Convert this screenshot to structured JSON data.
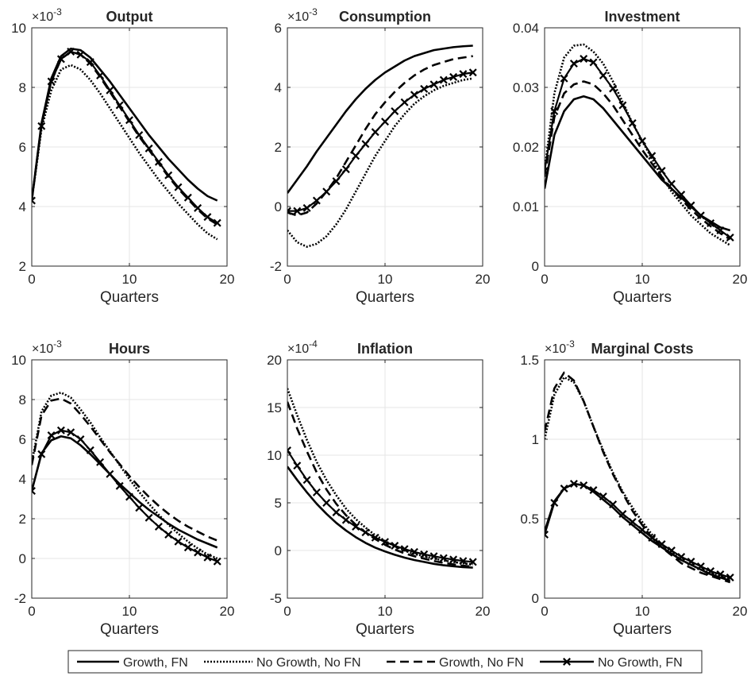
{
  "legend": {
    "placement": "bottom-center",
    "entries": [
      "Growth, FN",
      "No Growth, No FN",
      "Growth, No FN",
      "No Growth, FN"
    ]
  },
  "colors": {
    "lines": "#000000",
    "axes": "#262626",
    "grid": "#e6e6e6",
    "background": "#ffffff"
  },
  "chart_data": [
    {
      "type": "line",
      "title": "Output",
      "xlabel": "Quarters",
      "ylabel": "",
      "exponent": "-3",
      "xlim": [
        0,
        20
      ],
      "ylim": [
        2,
        10
      ],
      "xticks": [
        0,
        10,
        20
      ],
      "yticks": [
        2,
        4,
        6,
        8,
        10
      ],
      "grid": true,
      "x": [
        0,
        1,
        2,
        3,
        4,
        5,
        6,
        7,
        8,
        9,
        10,
        11,
        12,
        13,
        14,
        15,
        16,
        17,
        18,
        19
      ],
      "series": [
        {
          "name": "Growth, FN",
          "style": "solid",
          "values": [
            4.2,
            6.8,
            8.3,
            9.05,
            9.3,
            9.25,
            9.0,
            8.6,
            8.2,
            7.75,
            7.3,
            6.85,
            6.4,
            6.0,
            5.6,
            5.25,
            4.9,
            4.6,
            4.35,
            4.2
          ]
        },
        {
          "name": "No Growth, No FN",
          "style": "dotted",
          "values": [
            4.2,
            6.6,
            7.9,
            8.6,
            8.75,
            8.6,
            8.25,
            7.8,
            7.3,
            6.8,
            6.3,
            5.8,
            5.35,
            4.9,
            4.5,
            4.1,
            3.75,
            3.4,
            3.1,
            2.9
          ]
        },
        {
          "name": "Growth, No FN",
          "style": "dashed",
          "values": [
            4.2,
            6.75,
            8.2,
            8.95,
            9.2,
            9.1,
            8.8,
            8.35,
            7.85,
            7.35,
            6.85,
            6.35,
            5.9,
            5.45,
            5.0,
            4.6,
            4.25,
            3.9,
            3.6,
            3.4
          ]
        },
        {
          "name": "No Growth, FN",
          "style": "x-marker",
          "values": [
            4.2,
            6.7,
            8.2,
            8.95,
            9.2,
            9.1,
            8.85,
            8.4,
            7.9,
            7.4,
            6.9,
            6.4,
            5.95,
            5.5,
            5.05,
            4.65,
            4.3,
            3.95,
            3.65,
            3.45
          ]
        }
      ]
    },
    {
      "type": "line",
      "title": "Consumption",
      "xlabel": "Quarters",
      "ylabel": "",
      "exponent": "-3",
      "xlim": [
        0,
        20
      ],
      "ylim": [
        -2,
        6
      ],
      "xticks": [
        0,
        10,
        20
      ],
      "yticks": [
        -2,
        0,
        2,
        4,
        6
      ],
      "grid": true,
      "x": [
        0,
        1,
        2,
        3,
        4,
        5,
        6,
        7,
        8,
        9,
        10,
        11,
        12,
        13,
        14,
        15,
        16,
        17,
        18,
        19
      ],
      "series": [
        {
          "name": "Growth, FN",
          "style": "solid",
          "values": [
            0.45,
            0.9,
            1.35,
            1.85,
            2.3,
            2.75,
            3.2,
            3.6,
            3.95,
            4.25,
            4.5,
            4.7,
            4.9,
            5.05,
            5.15,
            5.25,
            5.3,
            5.35,
            5.38,
            5.4
          ]
        },
        {
          "name": "No Growth, No FN",
          "style": "dotted",
          "values": [
            -0.8,
            -1.2,
            -1.35,
            -1.25,
            -1.0,
            -0.6,
            -0.1,
            0.5,
            1.1,
            1.7,
            2.2,
            2.7,
            3.1,
            3.45,
            3.7,
            3.9,
            4.05,
            4.15,
            4.25,
            4.3
          ]
        },
        {
          "name": "Growth, No FN",
          "style": "dashed",
          "values": [
            -0.2,
            -0.3,
            -0.2,
            0.1,
            0.5,
            0.95,
            1.5,
            2.05,
            2.6,
            3.1,
            3.5,
            3.85,
            4.15,
            4.4,
            4.6,
            4.75,
            4.85,
            4.95,
            5.0,
            5.05
          ]
        },
        {
          "name": "No Growth, FN",
          "style": "x-marker",
          "values": [
            -0.15,
            -0.15,
            -0.05,
            0.2,
            0.5,
            0.85,
            1.25,
            1.7,
            2.1,
            2.5,
            2.85,
            3.2,
            3.5,
            3.75,
            3.95,
            4.1,
            4.25,
            4.35,
            4.45,
            4.5
          ]
        }
      ]
    },
    {
      "type": "line",
      "title": "Investment",
      "xlabel": "Quarters",
      "ylabel": "",
      "exponent": "",
      "xlim": [
        0,
        20
      ],
      "ylim": [
        0,
        0.04
      ],
      "xticks": [
        0,
        10,
        20
      ],
      "yticks": [
        0,
        0.01,
        0.02,
        0.03,
        0.04
      ],
      "yticklabels": [
        "0",
        "0.01",
        "0.02",
        "0.03",
        "0.04"
      ],
      "grid": true,
      "x": [
        0,
        1,
        2,
        3,
        4,
        5,
        6,
        7,
        8,
        9,
        10,
        11,
        12,
        13,
        14,
        15,
        16,
        17,
        18,
        19
      ],
      "series": [
        {
          "name": "Growth, FN",
          "style": "solid",
          "values": [
            0.013,
            0.022,
            0.026,
            0.028,
            0.0285,
            0.028,
            0.0265,
            0.0245,
            0.0225,
            0.0205,
            0.0185,
            0.0165,
            0.0145,
            0.013,
            0.0115,
            0.01,
            0.0085,
            0.0075,
            0.0065,
            0.006
          ]
        },
        {
          "name": "No Growth, No FN",
          "style": "dotted",
          "values": [
            0.016,
            0.029,
            0.035,
            0.037,
            0.0372,
            0.036,
            0.034,
            0.031,
            0.0275,
            0.024,
            0.021,
            0.018,
            0.015,
            0.0125,
            0.0105,
            0.0085,
            0.007,
            0.0055,
            0.0045,
            0.0035
          ]
        },
        {
          "name": "Growth, No FN",
          "style": "dashed",
          "values": [
            0.015,
            0.025,
            0.029,
            0.0305,
            0.031,
            0.0305,
            0.029,
            0.027,
            0.0245,
            0.022,
            0.0195,
            0.0172,
            0.015,
            0.013,
            0.0112,
            0.0095,
            0.008,
            0.0067,
            0.0055,
            0.0045
          ]
        },
        {
          "name": "No Growth, FN",
          "style": "x-marker",
          "values": [
            0.016,
            0.026,
            0.0315,
            0.034,
            0.0348,
            0.0342,
            0.032,
            0.0298,
            0.027,
            0.024,
            0.021,
            0.0185,
            0.016,
            0.0138,
            0.012,
            0.0102,
            0.0085,
            0.0072,
            0.006,
            0.0048
          ]
        }
      ]
    },
    {
      "type": "line",
      "title": "Hours",
      "xlabel": "Quarters",
      "ylabel": "",
      "exponent": "-3",
      "xlim": [
        0,
        20
      ],
      "ylim": [
        -2,
        10
      ],
      "xticks": [
        0,
        10,
        20
      ],
      "yticks": [
        -2,
        0,
        2,
        4,
        6,
        8,
        10
      ],
      "grid": true,
      "x": [
        0,
        1,
        2,
        3,
        4,
        5,
        6,
        7,
        8,
        9,
        10,
        11,
        12,
        13,
        14,
        15,
        16,
        17,
        18,
        19
      ],
      "series": [
        {
          "name": "Growth, FN",
          "style": "solid",
          "values": [
            3.4,
            5.3,
            5.95,
            6.15,
            6.05,
            5.7,
            5.25,
            4.75,
            4.25,
            3.75,
            3.3,
            2.85,
            2.45,
            2.1,
            1.75,
            1.45,
            1.2,
            0.95,
            0.75,
            0.55
          ]
        },
        {
          "name": "No Growth, No FN",
          "style": "dotted",
          "values": [
            4.8,
            7.4,
            8.2,
            8.35,
            8.1,
            7.5,
            6.85,
            6.1,
            5.4,
            4.7,
            4.0,
            3.35,
            2.75,
            2.2,
            1.7,
            1.25,
            0.85,
            0.5,
            0.2,
            0.0
          ]
        },
        {
          "name": "Growth, No FN",
          "style": "dashed",
          "values": [
            4.7,
            7.2,
            7.95,
            8.05,
            7.8,
            7.25,
            6.65,
            6.0,
            5.35,
            4.75,
            4.15,
            3.6,
            3.1,
            2.65,
            2.25,
            1.9,
            1.6,
            1.35,
            1.1,
            0.9
          ]
        },
        {
          "name": "No Growth, FN",
          "style": "x-marker",
          "values": [
            3.4,
            5.25,
            6.2,
            6.45,
            6.35,
            6.0,
            5.45,
            4.85,
            4.25,
            3.65,
            3.1,
            2.55,
            2.05,
            1.6,
            1.2,
            0.85,
            0.55,
            0.3,
            0.05,
            -0.15
          ]
        }
      ]
    },
    {
      "type": "line",
      "title": "Inflation",
      "xlabel": "Quarters",
      "ylabel": "",
      "exponent": "-4",
      "xlim": [
        0,
        20
      ],
      "ylim": [
        -5,
        20
      ],
      "xticks": [
        0,
        10,
        20
      ],
      "yticks": [
        -5,
        0,
        5,
        10,
        15,
        20
      ],
      "grid": true,
      "x": [
        0,
        1,
        2,
        3,
        4,
        5,
        6,
        7,
        8,
        9,
        10,
        11,
        12,
        13,
        14,
        15,
        16,
        17,
        18,
        19
      ],
      "series": [
        {
          "name": "Growth, FN",
          "style": "solid",
          "values": [
            8.8,
            7.4,
            6.1,
            4.9,
            3.85,
            2.9,
            2.1,
            1.4,
            0.8,
            0.3,
            -0.1,
            -0.45,
            -0.75,
            -1.0,
            -1.2,
            -1.4,
            -1.55,
            -1.65,
            -1.75,
            -1.8
          ]
        },
        {
          "name": "No Growth, No FN",
          "style": "dotted",
          "values": [
            17.0,
            14.2,
            11.6,
            9.3,
            7.4,
            5.8,
            4.4,
            3.3,
            2.4,
            1.6,
            1.0,
            0.45,
            0.0,
            -0.35,
            -0.6,
            -0.85,
            -1.05,
            -1.2,
            -1.35,
            -1.45
          ]
        },
        {
          "name": "Growth, No FN",
          "style": "dashed",
          "values": [
            15.6,
            12.8,
            10.4,
            8.2,
            6.4,
            4.9,
            3.7,
            2.7,
            1.9,
            1.2,
            0.6,
            0.1,
            -0.3,
            -0.6,
            -0.85,
            -1.1,
            -1.3,
            -1.45,
            -1.6,
            -1.7
          ]
        },
        {
          "name": "No Growth, FN",
          "style": "x-marker",
          "values": [
            10.5,
            8.9,
            7.4,
            6.1,
            5.0,
            4.0,
            3.2,
            2.5,
            1.9,
            1.35,
            0.9,
            0.5,
            0.15,
            -0.15,
            -0.4,
            -0.6,
            -0.8,
            -0.95,
            -1.1,
            -1.2
          ]
        }
      ]
    },
    {
      "type": "line",
      "title": "Marginal Costs",
      "xlabel": "Quarters",
      "ylabel": "",
      "exponent": "-3",
      "xlim": [
        0,
        20
      ],
      "ylim": [
        0,
        1.5
      ],
      "xticks": [
        0,
        10,
        20
      ],
      "yticks": [
        0,
        0.5,
        1,
        1.5
      ],
      "yticklabels": [
        "0",
        "0.5",
        "1",
        "1.5"
      ],
      "grid": true,
      "x": [
        0,
        1,
        2,
        3,
        4,
        5,
        6,
        7,
        8,
        9,
        10,
        11,
        12,
        13,
        14,
        15,
        16,
        17,
        18,
        19
      ],
      "series": [
        {
          "name": "Growth, FN",
          "style": "solid",
          "values": [
            0.42,
            0.61,
            0.69,
            0.72,
            0.71,
            0.67,
            0.62,
            0.57,
            0.51,
            0.46,
            0.41,
            0.36,
            0.32,
            0.28,
            0.24,
            0.21,
            0.18,
            0.15,
            0.13,
            0.11
          ]
        },
        {
          "name": "No Growth, No FN",
          "style": "dotted",
          "values": [
            1.0,
            1.28,
            1.39,
            1.36,
            1.24,
            1.08,
            0.93,
            0.79,
            0.67,
            0.57,
            0.48,
            0.4,
            0.34,
            0.29,
            0.24,
            0.21,
            0.18,
            0.16,
            0.14,
            0.12
          ]
        },
        {
          "name": "Growth, No FN",
          "style": "dashed",
          "values": [
            1.05,
            1.32,
            1.42,
            1.37,
            1.24,
            1.08,
            0.92,
            0.78,
            0.66,
            0.55,
            0.46,
            0.38,
            0.32,
            0.27,
            0.22,
            0.19,
            0.16,
            0.14,
            0.12,
            0.1
          ]
        },
        {
          "name": "No Growth, FN",
          "style": "x-marker",
          "values": [
            0.4,
            0.6,
            0.69,
            0.72,
            0.71,
            0.68,
            0.64,
            0.59,
            0.53,
            0.48,
            0.43,
            0.38,
            0.34,
            0.3,
            0.26,
            0.23,
            0.2,
            0.17,
            0.15,
            0.13
          ]
        }
      ]
    }
  ]
}
